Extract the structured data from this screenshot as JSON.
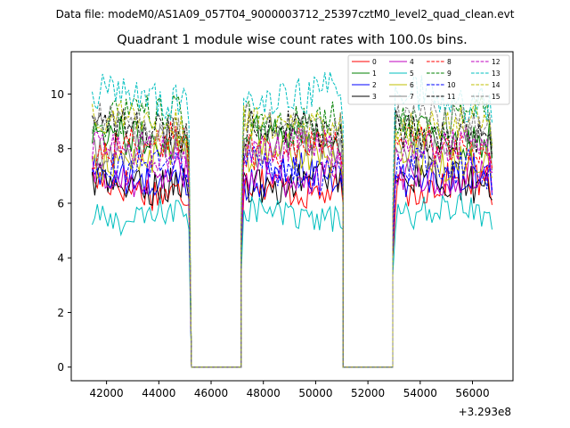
{
  "header": {
    "data_file": "Data file: modeM0/AS1A09_057T04_9000003712_25397cztM0_level2_quad_clean.evt"
  },
  "chart_data": {
    "type": "line",
    "title": "Quadrant 1 module wise count rates with 100.0s bins.",
    "xlabel": "",
    "ylabel": "",
    "x_offset_label": "+3.293e8",
    "xlim": [
      40650,
      57550
    ],
    "ylim": [
      -0.5,
      11.55
    ],
    "x_ticks": [
      42000,
      44000,
      46000,
      48000,
      50000,
      52000,
      54000,
      56000
    ],
    "x_tick_labels": [
      "42000",
      "44000",
      "46000",
      "48000",
      "50000",
      "52000",
      "54000",
      "56000"
    ],
    "y_ticks": [
      0,
      2,
      4,
      6,
      8,
      10
    ],
    "y_tick_labels": [
      "0",
      "2",
      "4",
      "6",
      "8",
      "10"
    ],
    "segments": [
      {
        "start": 41450,
        "end": 45050
      },
      {
        "start": 47250,
        "end": 50950
      },
      {
        "start": 53050,
        "end": 56650
      }
    ],
    "gaps": [
      {
        "start": 45250,
        "end": 47150
      },
      {
        "start": 51050,
        "end": 52950
      }
    ],
    "bin_seconds": 100,
    "legend_placement": "top-right",
    "series": [
      {
        "name": "0",
        "mean": 6.6,
        "color": "#ff0000",
        "dash": "solid"
      },
      {
        "name": "1",
        "mean": 8.5,
        "color": "#008000",
        "dash": "solid"
      },
      {
        "name": "2",
        "mean": 7.0,
        "color": "#0000ff",
        "dash": "solid"
      },
      {
        "name": "3",
        "mean": 6.8,
        "color": "#000000",
        "dash": "solid"
      },
      {
        "name": "4",
        "mean": 7.1,
        "color": "#bf00bf",
        "dash": "solid"
      },
      {
        "name": "5",
        "mean": 5.6,
        "color": "#00bfbf",
        "dash": "solid"
      },
      {
        "name": "6",
        "mean": 7.7,
        "color": "#bfbf00",
        "dash": "solid"
      },
      {
        "name": "7",
        "mean": 8.0,
        "color": "#808080",
        "dash": "solid"
      },
      {
        "name": "8",
        "mean": 8.1,
        "color": "#ff0000",
        "dash": "dashed"
      },
      {
        "name": "9",
        "mean": 9.1,
        "color": "#008000",
        "dash": "dashed"
      },
      {
        "name": "10",
        "mean": 7.2,
        "color": "#0000ff",
        "dash": "dashed"
      },
      {
        "name": "11",
        "mean": 8.6,
        "color": "#000000",
        "dash": "dashed"
      },
      {
        "name": "12",
        "mean": 7.9,
        "color": "#bf00bf",
        "dash": "dashed"
      },
      {
        "name": "13",
        "mean": 9.9,
        "color": "#00bfbf",
        "dash": "dashed"
      },
      {
        "name": "14",
        "mean": 9.0,
        "color": "#bfbf00",
        "dash": "dashed"
      },
      {
        "name": "15",
        "mean": 8.9,
        "color": "#808080",
        "dash": "dashed"
      }
    ]
  }
}
